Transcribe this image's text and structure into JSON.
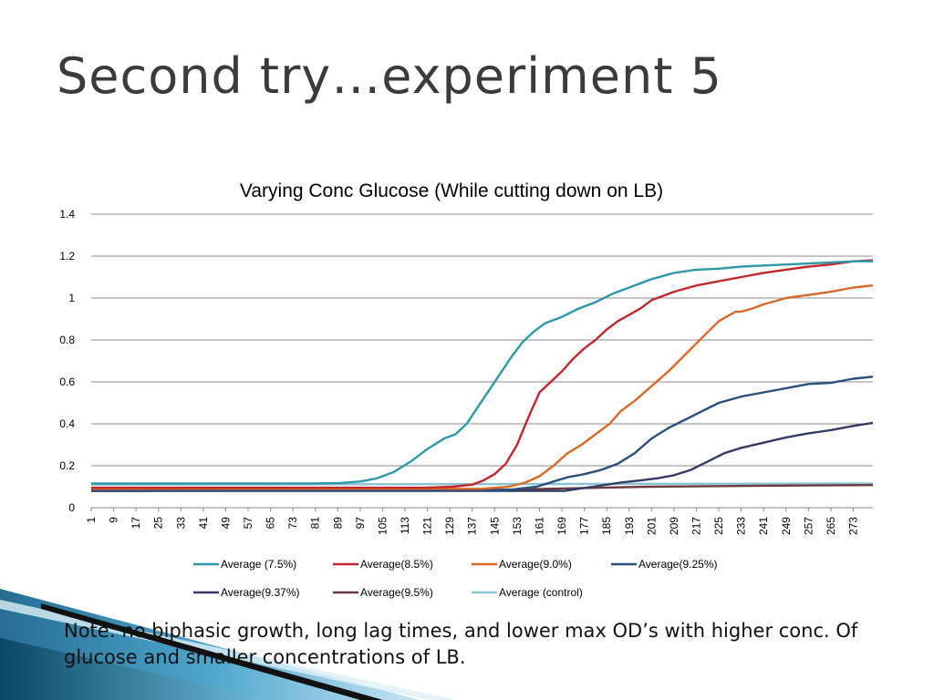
{
  "slide": {
    "title": "Second try…experiment 5",
    "note": "Note: no biphasic growth, long lag times, and lower max OD’s with higher conc. Of glucose and smaller concentrations of LB."
  },
  "chart_data": {
    "type": "line",
    "title": "Varying Conc Glucose (While cutting down on LB)",
    "xlabel": "",
    "ylabel": "",
    "ylim": [
      0,
      1.4
    ],
    "yticks": [
      0,
      0.2,
      0.4,
      0.6,
      0.8,
      1,
      1.2,
      1.4
    ],
    "ytick_labels": [
      "0",
      "0.2",
      "0.4",
      "0.6",
      "0.8",
      "1",
      "1.2",
      "1.4"
    ],
    "xlim": [
      1,
      280
    ],
    "xticks": [
      1,
      9,
      17,
      25,
      33,
      41,
      49,
      57,
      65,
      73,
      81,
      89,
      97,
      105,
      113,
      121,
      129,
      137,
      145,
      153,
      161,
      169,
      177,
      185,
      193,
      201,
      209,
      217,
      225,
      233,
      241,
      249,
      257,
      265,
      273
    ],
    "grid": "horizontal",
    "legend_position": "bottom",
    "series": [
      {
        "name": "Average (7.5%)",
        "color": "#2e98a8",
        "points": [
          [
            1,
            0.115
          ],
          [
            80,
            0.115
          ],
          [
            90,
            0.118
          ],
          [
            97,
            0.125
          ],
          [
            103,
            0.14
          ],
          [
            109,
            0.17
          ],
          [
            115,
            0.22
          ],
          [
            121,
            0.28
          ],
          [
            127,
            0.33
          ],
          [
            131,
            0.35
          ],
          [
            135,
            0.4
          ],
          [
            139,
            0.48
          ],
          [
            143,
            0.56
          ],
          [
            147,
            0.64
          ],
          [
            151,
            0.72
          ],
          [
            155,
            0.79
          ],
          [
            159,
            0.84
          ],
          [
            163,
            0.88
          ],
          [
            169,
            0.91
          ],
          [
            175,
            0.95
          ],
          [
            181,
            0.98
          ],
          [
            187,
            1.02
          ],
          [
            193,
            1.05
          ],
          [
            201,
            1.09
          ],
          [
            209,
            1.12
          ],
          [
            217,
            1.135
          ],
          [
            225,
            1.14
          ],
          [
            233,
            1.15
          ],
          [
            241,
            1.155
          ],
          [
            249,
            1.16
          ],
          [
            257,
            1.165
          ],
          [
            265,
            1.17
          ],
          [
            273,
            1.175
          ],
          [
            280,
            1.175
          ]
        ]
      },
      {
        "name": "Average(8.5%)",
        "color": "#c0282e",
        "points": [
          [
            1,
            0.095
          ],
          [
            120,
            0.095
          ],
          [
            130,
            0.1
          ],
          [
            137,
            0.11
          ],
          [
            141,
            0.13
          ],
          [
            145,
            0.16
          ],
          [
            149,
            0.21
          ],
          [
            153,
            0.3
          ],
          [
            157,
            0.43
          ],
          [
            161,
            0.55
          ],
          [
            165,
            0.6
          ],
          [
            169,
            0.65
          ],
          [
            173,
            0.71
          ],
          [
            177,
            0.76
          ],
          [
            181,
            0.8
          ],
          [
            185,
            0.85
          ],
          [
            189,
            0.89
          ],
          [
            193,
            0.92
          ],
          [
            197,
            0.95
          ],
          [
            201,
            0.99
          ],
          [
            205,
            1.01
          ],
          [
            209,
            1.03
          ],
          [
            217,
            1.06
          ],
          [
            225,
            1.08
          ],
          [
            233,
            1.1
          ],
          [
            241,
            1.12
          ],
          [
            249,
            1.135
          ],
          [
            257,
            1.15
          ],
          [
            265,
            1.16
          ],
          [
            273,
            1.175
          ],
          [
            280,
            1.18
          ]
        ]
      },
      {
        "name": "Average(9.0%)",
        "color": "#d9692a",
        "points": [
          [
            1,
            0.09
          ],
          [
            140,
            0.09
          ],
          [
            150,
            0.1
          ],
          [
            156,
            0.12
          ],
          [
            161,
            0.15
          ],
          [
            166,
            0.2
          ],
          [
            171,
            0.26
          ],
          [
            176,
            0.3
          ],
          [
            181,
            0.35
          ],
          [
            186,
            0.4
          ],
          [
            190,
            0.46
          ],
          [
            195,
            0.51
          ],
          [
            201,
            0.58
          ],
          [
            207,
            0.65
          ],
          [
            213,
            0.73
          ],
          [
            219,
            0.81
          ],
          [
            225,
            0.89
          ],
          [
            231,
            0.935
          ],
          [
            233,
            0.935
          ],
          [
            237,
            0.95
          ],
          [
            241,
            0.97
          ],
          [
            249,
            1.0
          ],
          [
            257,
            1.015
          ],
          [
            265,
            1.03
          ],
          [
            273,
            1.05
          ],
          [
            280,
            1.06
          ]
        ]
      },
      {
        "name": "Average(9.25%)",
        "color": "#2b4f7e",
        "points": [
          [
            1,
            0.085
          ],
          [
            150,
            0.085
          ],
          [
            160,
            0.1
          ],
          [
            166,
            0.125
          ],
          [
            171,
            0.145
          ],
          [
            177,
            0.16
          ],
          [
            183,
            0.18
          ],
          [
            189,
            0.21
          ],
          [
            195,
            0.26
          ],
          [
            201,
            0.33
          ],
          [
            207,
            0.38
          ],
          [
            213,
            0.42
          ],
          [
            219,
            0.46
          ],
          [
            225,
            0.5
          ],
          [
            233,
            0.53
          ],
          [
            241,
            0.55
          ],
          [
            249,
            0.57
          ],
          [
            257,
            0.59
          ],
          [
            265,
            0.595
          ],
          [
            273,
            0.615
          ],
          [
            280,
            0.625
          ]
        ]
      },
      {
        "name": "Average(9.37%)",
        "color": "#333c66",
        "points": [
          [
            1,
            0.08
          ],
          [
            170,
            0.08
          ],
          [
            180,
            0.1
          ],
          [
            190,
            0.12
          ],
          [
            197,
            0.13
          ],
          [
            203,
            0.14
          ],
          [
            209,
            0.155
          ],
          [
            215,
            0.18
          ],
          [
            221,
            0.22
          ],
          [
            227,
            0.26
          ],
          [
            233,
            0.285
          ],
          [
            241,
            0.31
          ],
          [
            249,
            0.335
          ],
          [
            257,
            0.355
          ],
          [
            265,
            0.37
          ],
          [
            273,
            0.39
          ],
          [
            280,
            0.405
          ]
        ]
      },
      {
        "name": "Average(9.5%)",
        "color": "#6b3a3f",
        "points": [
          [
            1,
            0.08
          ],
          [
            100,
            0.082
          ],
          [
            150,
            0.086
          ],
          [
            200,
            0.1
          ],
          [
            240,
            0.105
          ],
          [
            280,
            0.108
          ]
        ]
      },
      {
        "name": "Average (control)",
        "color": "#8cc3d4",
        "points": [
          [
            1,
            0.11
          ],
          [
            280,
            0.115
          ]
        ]
      }
    ]
  }
}
